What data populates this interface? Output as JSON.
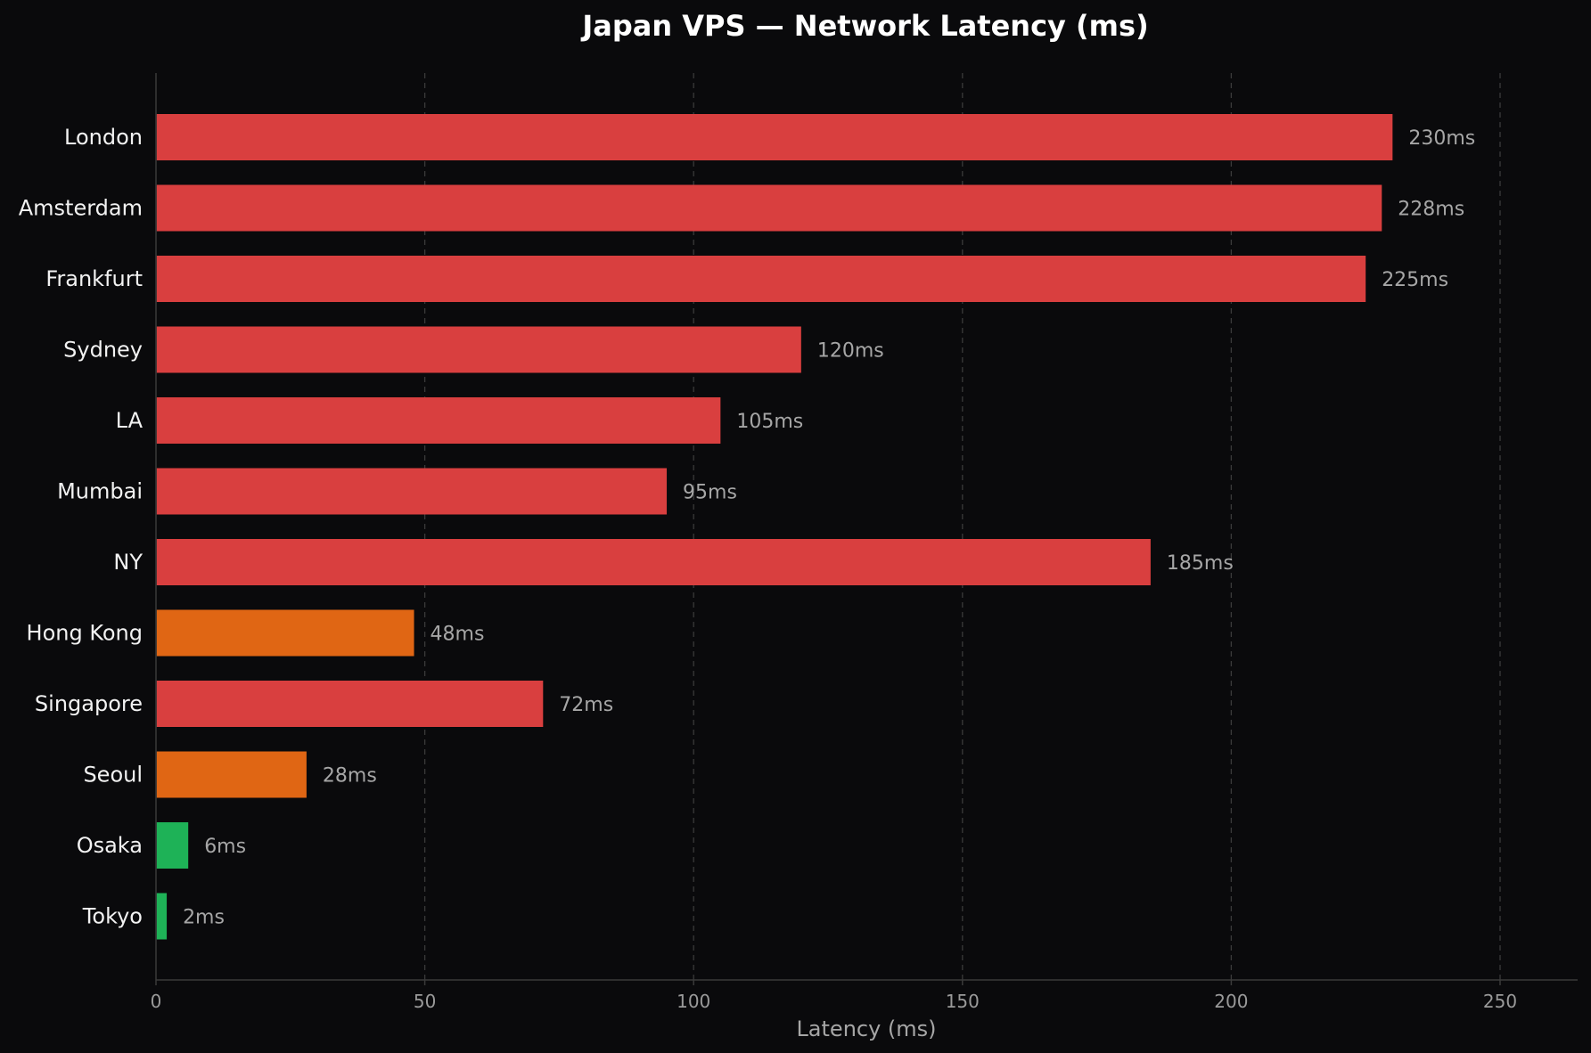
{
  "chart_data": {
    "type": "bar",
    "orientation": "horizontal",
    "title": "Japan VPS — Network Latency (ms)",
    "xlabel": "Latency (ms)",
    "ylabel": "",
    "xlim": [
      0,
      265
    ],
    "xticks": [
      0,
      50,
      100,
      150,
      200,
      250
    ],
    "grid": "vertical dashed",
    "categories": [
      "London",
      "Amsterdam",
      "Frankfurt",
      "Sydney",
      "LA",
      "Mumbai",
      "NY",
      "Hong Kong",
      "Singapore",
      "Seoul",
      "Osaka",
      "Tokyo"
    ],
    "values": [
      230,
      228,
      225,
      120,
      105,
      95,
      185,
      48,
      72,
      28,
      6,
      2
    ],
    "value_labels": [
      "230ms",
      "228ms",
      "225ms",
      "120ms",
      "105ms",
      "95ms",
      "185ms",
      "48ms",
      "72ms",
      "28ms",
      "6ms",
      "2ms"
    ],
    "bar_colors": [
      "#d93f3f",
      "#d93f3f",
      "#d93f3f",
      "#d93f3f",
      "#d93f3f",
      "#d93f3f",
      "#d93f3f",
      "#e06614",
      "#d93f3f",
      "#e06614",
      "#1eb257",
      "#1eb257"
    ]
  }
}
